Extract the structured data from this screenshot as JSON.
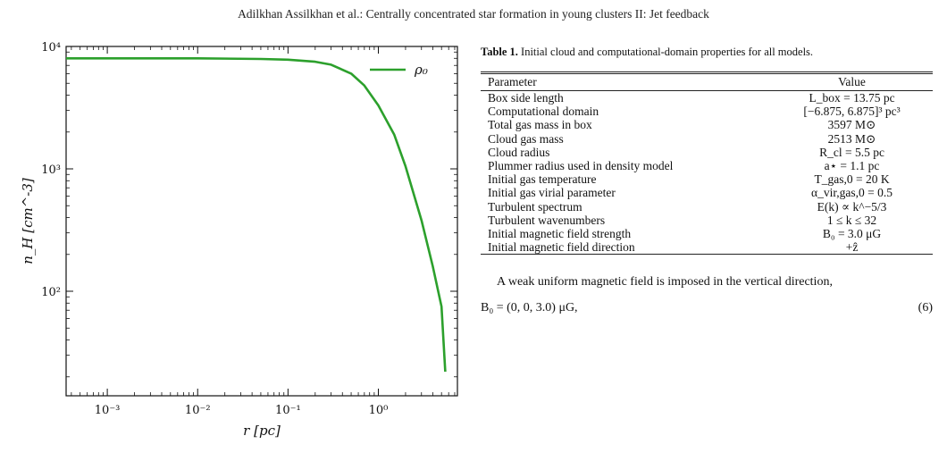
{
  "header": {
    "running_title": "Adilkhan Assilkhan et al.: Centrally concentrated star formation in young clusters II: Jet feedback"
  },
  "chart_data": {
    "type": "line",
    "xlabel": "r [pc]",
    "ylabel": "n_H [cm^-3]",
    "x_scale": "log",
    "y_scale": "log",
    "xlim": [
      0.00035,
      7.5
    ],
    "ylim": [
      14,
      10000
    ],
    "x_ticks": [
      {
        "value": 0.001,
        "label": "10⁻³"
      },
      {
        "value": 0.01,
        "label": "10⁻²"
      },
      {
        "value": 0.1,
        "label": "10⁻¹"
      },
      {
        "value": 1,
        "label": "10⁰"
      }
    ],
    "y_ticks": [
      {
        "value": 100,
        "label": "10²"
      },
      {
        "value": 1000,
        "label": "10³"
      },
      {
        "value": 10000,
        "label": "10⁴"
      }
    ],
    "legend_position": "top-right",
    "grid": false,
    "series": [
      {
        "name": "ρ₀",
        "color": "#2ca02c",
        "x": [
          0.00035,
          0.001,
          0.01,
          0.05,
          0.1,
          0.2,
          0.3,
          0.5,
          0.7,
          1.0,
          1.5,
          2.0,
          3.0,
          4.0,
          5.0,
          5.5
        ],
        "y": [
          8000,
          8000,
          8000,
          7900,
          7800,
          7500,
          7100,
          6000,
          4800,
          3300,
          1900,
          1050,
          380,
          160,
          75,
          22
        ]
      }
    ]
  },
  "table": {
    "caption_label": "Table 1.",
    "caption_text": "Initial cloud and computational-domain properties for all models.",
    "headers": [
      "Parameter",
      "Value"
    ],
    "rows": [
      {
        "parameter": "Box side length",
        "value": "L_box = 13.75 pc"
      },
      {
        "parameter": "Computational domain",
        "value": "[−6.875, 6.875]³ pc³"
      },
      {
        "parameter": "Total gas mass in box",
        "value": "3597 M⊙"
      },
      {
        "parameter": "Cloud gas mass",
        "value": "2513 M⊙"
      },
      {
        "parameter": "Cloud radius",
        "value": "R_cl = 5.5 pc"
      },
      {
        "parameter": "Plummer radius used in density model",
        "value": "a⋆ = 1.1 pc"
      },
      {
        "parameter": "Initial gas temperature",
        "value": "T_gas,0 = 20 K"
      },
      {
        "parameter": "Initial gas virial parameter",
        "value": "α_vir,gas,0 = 0.5"
      },
      {
        "parameter": "Turbulent spectrum",
        "value": "E(k) ∝ k^−5/3"
      },
      {
        "parameter": "Turbulent wavenumbers",
        "value": "1 ≤ k ≤ 32"
      },
      {
        "parameter": "Initial magnetic field strength",
        "value": "B₀ = 3.0 μG"
      },
      {
        "parameter": "Initial magnetic field direction",
        "value": "+ẑ"
      }
    ]
  },
  "body": {
    "paragraph": "A weak uniform magnetic field is imposed in the vertical direction,",
    "equation_text": "B₀ = (0, 0, 3.0) μG,",
    "equation_number": "(6)"
  }
}
